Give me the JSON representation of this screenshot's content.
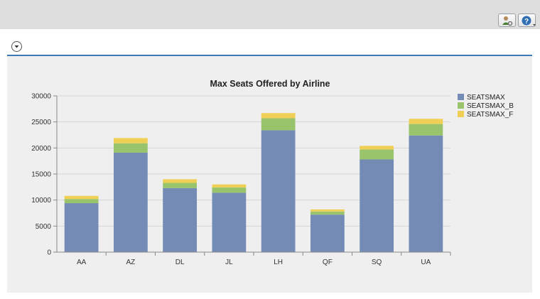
{
  "toolbar": {
    "buttons": [
      {
        "name": "personalize-button",
        "icon": "user-settings-icon"
      },
      {
        "name": "help-button",
        "icon": "help-icon"
      }
    ]
  },
  "panel": {
    "collapse_icon": "chevron-down-icon",
    "accent_color": "#3d79b5"
  },
  "chart_data": {
    "type": "bar",
    "stacked": true,
    "title": "Max Seats Offered by Airline",
    "xlabel": "",
    "ylabel": "",
    "ylim": [
      0,
      30000
    ],
    "yticks": [
      0,
      5000,
      10000,
      15000,
      20000,
      25000,
      30000
    ],
    "grid": true,
    "legend_position": "top-right",
    "categories": [
      "AA",
      "AZ",
      "DL",
      "JL",
      "LH",
      "QF",
      "SQ",
      "UA"
    ],
    "series": [
      {
        "name": "SEATSMAX",
        "color": "#738bb5",
        "values": [
          9400,
          19100,
          12300,
          11400,
          23400,
          7200,
          17800,
          22400
        ]
      },
      {
        "name": "SEATSMAX_B",
        "color": "#99c46b",
        "values": [
          800,
          1800,
          1000,
          1000,
          2300,
          600,
          1900,
          2200
        ]
      },
      {
        "name": "SEATSMAX_F",
        "color": "#f0cf56",
        "values": [
          600,
          1000,
          700,
          600,
          1000,
          400,
          700,
          1000
        ]
      }
    ]
  }
}
